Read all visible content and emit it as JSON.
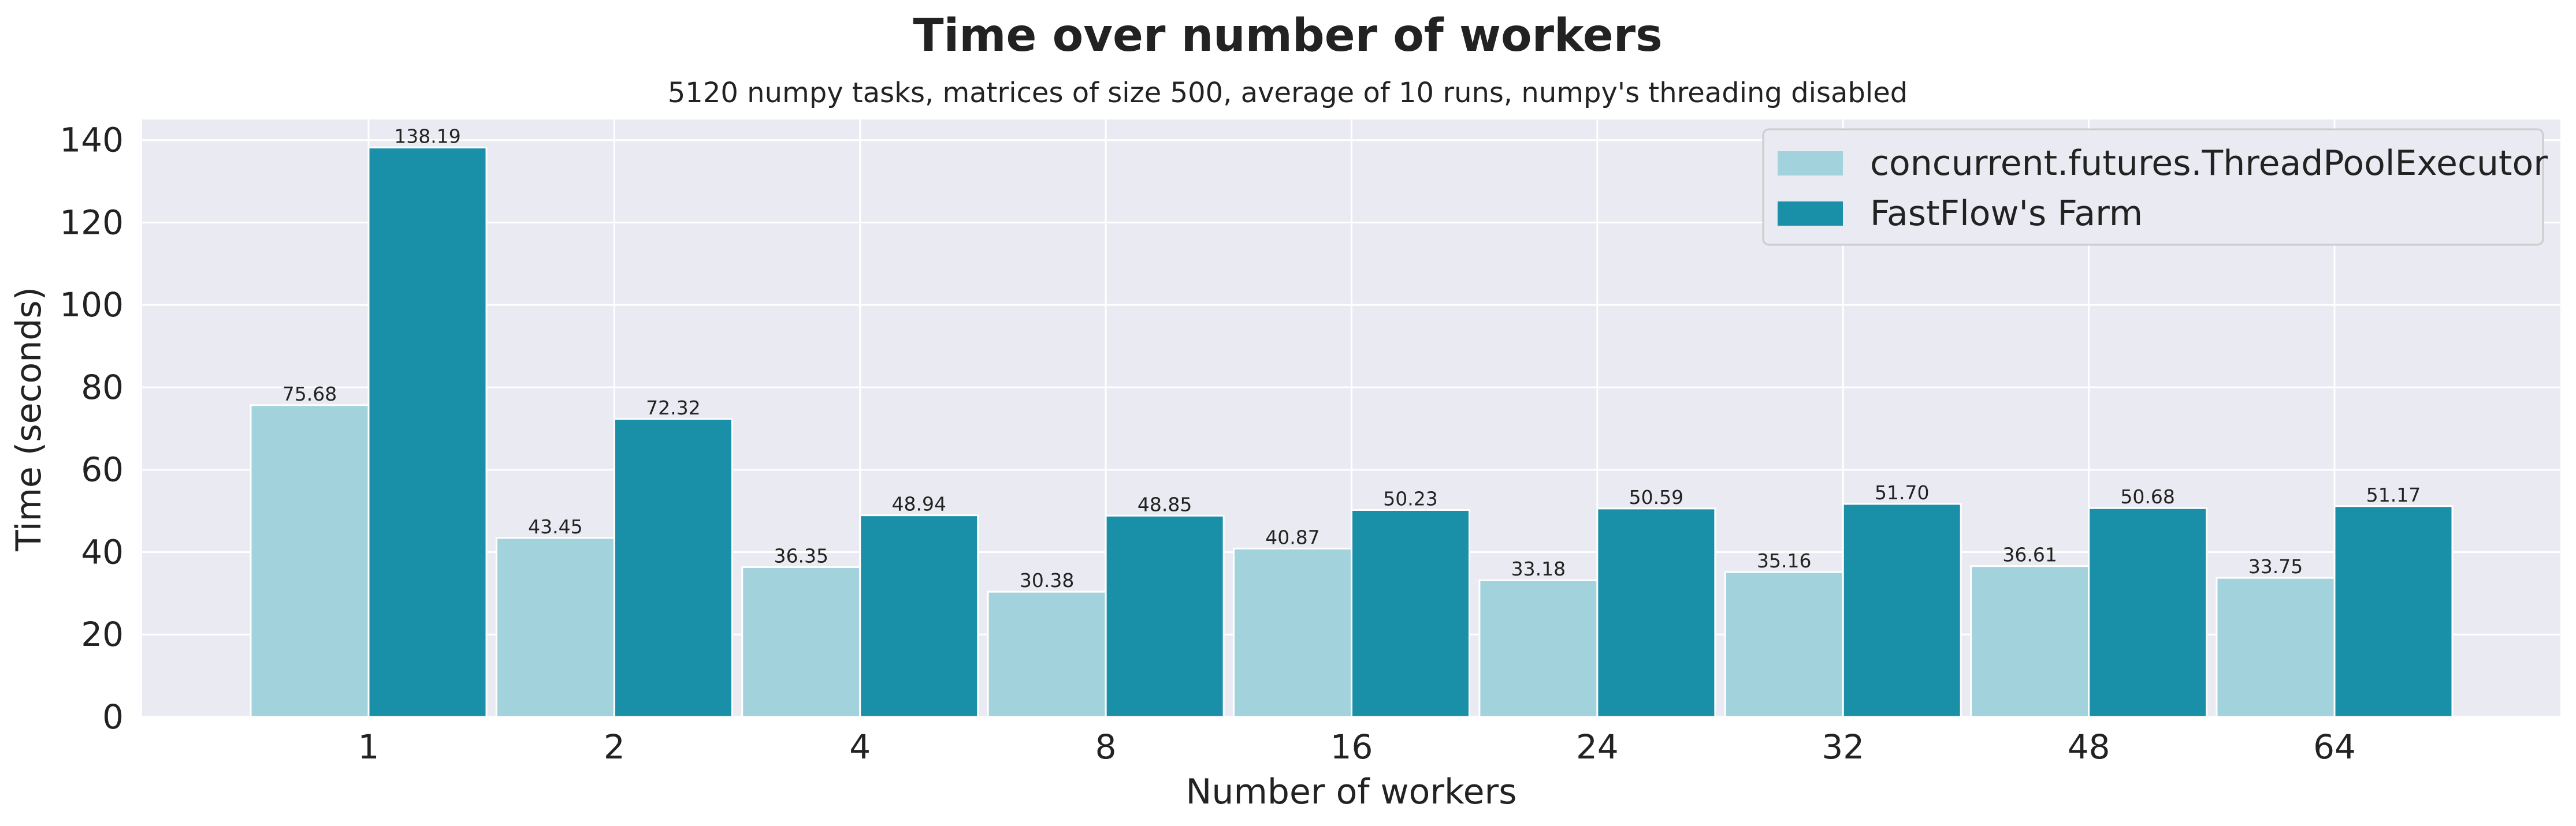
{
  "chart_data": {
    "type": "bar",
    "title": "Time over number of workers",
    "subtitle": "5120 numpy tasks, matrices of size 500, average of 10 runs, numpy's threading disabled",
    "xlabel": "Number of workers",
    "ylabel": "Time (seconds)",
    "categories": [
      "1",
      "2",
      "4",
      "8",
      "16",
      "24",
      "32",
      "48",
      "64"
    ],
    "series": [
      {
        "name": "concurrent.futures.ThreadPoolExecutor",
        "color": "#a2d2dc",
        "values": [
          75.68,
          43.45,
          36.35,
          30.38,
          40.87,
          33.18,
          35.16,
          36.61,
          33.75
        ],
        "labels": [
          "75.68",
          "43.45",
          "36.35",
          "30.38",
          "40.87",
          "33.18",
          "35.16",
          "36.61",
          "33.75"
        ]
      },
      {
        "name": "FastFlow's Farm",
        "color": "#1a8fa8",
        "values": [
          138.19,
          72.32,
          48.94,
          48.85,
          50.23,
          50.59,
          51.7,
          50.68,
          51.17
        ],
        "labels": [
          "138.19",
          "72.32",
          "48.94",
          "48.85",
          "50.23",
          "50.59",
          "51.70",
          "50.68",
          "51.17"
        ]
      }
    ],
    "ylim": [
      0,
      145
    ],
    "yticks": [
      "0",
      "20",
      "40",
      "60",
      "80",
      "100",
      "120",
      "140"
    ],
    "grid": true,
    "legend_position": "top-right",
    "plot_background": "#eaeaf2",
    "grid_color": "#ffffff"
  }
}
